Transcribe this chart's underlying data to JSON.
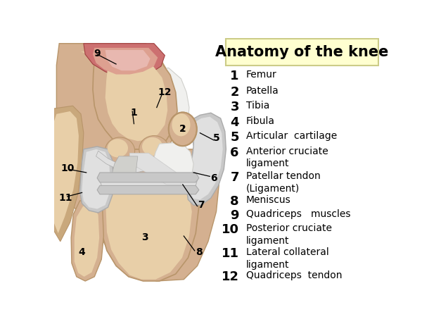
{
  "title": "Anatomy of the knee",
  "title_box_color": "#ffffd0",
  "title_box_border": "#cccc88",
  "background_color": "#ffffff",
  "legend_entries": [
    {
      "num": "1",
      "text": "Femur",
      "lines": 1
    },
    {
      "num": "2",
      "text": "Patella",
      "lines": 1
    },
    {
      "num": "3",
      "text": "Tibia",
      "lines": 1
    },
    {
      "num": "4",
      "text": "Fibula",
      "lines": 1
    },
    {
      "num": "5",
      "text": "Articular  cartilage",
      "lines": 1
    },
    {
      "num": "6",
      "text": "Anterior cruciate\nligament",
      "lines": 2
    },
    {
      "num": "7",
      "text": "Patellar tendon\n(Ligament)",
      "lines": 2
    },
    {
      "num": "8",
      "text": "Meniscus",
      "lines": 1
    },
    {
      "num": "9",
      "text": "Quadriceps   muscles",
      "lines": 1
    },
    {
      "num": "10",
      "text": "Posterior cruciate\nligament",
      "lines": 2
    },
    {
      "num": "11",
      "text": "Lateral collateral\nligament",
      "lines": 2
    },
    {
      "num": "12",
      "text": "Quadriceps  tendon",
      "lines": 1
    }
  ],
  "skin_color": "#d4b090",
  "skin_dark": "#b8956a",
  "skin_med": "#c9a87c",
  "skin_light": "#e8cfa8",
  "skin_pale": "#eddfc0",
  "bone_color": "#d4b090",
  "bone_light": "#e8cfa8",
  "bone_dark": "#b8956a",
  "cart_color": "#c8c8c8",
  "cart_light": "#e0e0e0",
  "cart_dark": "#aaaaaa",
  "muscle_color": "#cc7070",
  "muscle_dark": "#a04040",
  "muscle_light": "#dda090",
  "muscle_pale": "#e8b8b0",
  "white_tend": "#f0f0ee",
  "gray_tend": "#d0d0cc",
  "label_fs": 10,
  "legend_num_fs": 13,
  "legend_text_fs": 10,
  "title_fs": 15
}
